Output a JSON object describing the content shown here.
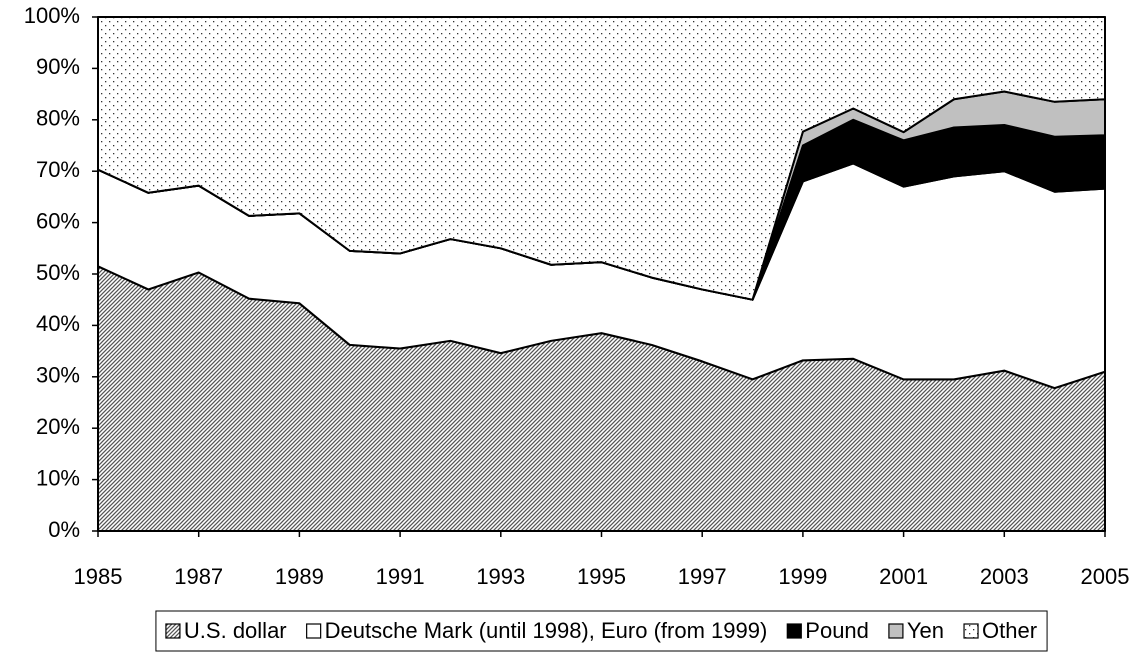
{
  "chart_data": {
    "type": "stacked_area",
    "x": [
      1985,
      1986,
      1987,
      1988,
      1989,
      1990,
      1991,
      1992,
      1993,
      1994,
      1995,
      1996,
      1997,
      1998,
      1999,
      2000,
      2001,
      2002,
      2003,
      2004,
      2005
    ],
    "series": [
      {
        "name": "U.S. dollar",
        "color": "#606060",
        "pattern": "diagonal",
        "values": [
          51.5,
          47,
          50.3,
          45.2,
          44.3,
          36.2,
          35.5,
          37,
          34.6,
          37,
          38.5,
          36.2,
          33,
          29.5,
          33.2,
          33.5,
          29.5,
          29.5,
          31.2,
          27.8,
          31
        ]
      },
      {
        "name": "Deutsche Mark (until 1998), Euro (from 1999)",
        "color": "#ffffff",
        "values": [
          18.8,
          18.8,
          16.9,
          16.1,
          17.5,
          18.3,
          18.5,
          19.8,
          20.4,
          14.8,
          13.8,
          13.1,
          14,
          15.5,
          34.8,
          38,
          37.5,
          39.5,
          38.8,
          38.2,
          35.6
        ]
      },
      {
        "name": "Pound",
        "color": "#000000",
        "values": [
          0,
          0,
          0,
          0,
          0,
          0,
          0,
          0,
          0,
          0,
          0,
          0,
          0,
          0,
          7,
          8.5,
          9,
          9.5,
          9,
          10.7,
          10.4
        ]
      },
      {
        "name": "Yen",
        "color": "#c0c0c0",
        "values": [
          0,
          0,
          0,
          0,
          0,
          0,
          0,
          0,
          0,
          0,
          0,
          0,
          0,
          0,
          2.7,
          2.2,
          1.6,
          5.5,
          6.5,
          6.8,
          7
        ]
      },
      {
        "name": "Other",
        "color": "#404040",
        "pattern": "dots",
        "values": [
          29.7,
          34.2,
          32.8,
          38.7,
          38.2,
          45.5,
          46,
          43.2,
          45,
          48.2,
          47.7,
          50.7,
          53,
          55,
          22.3,
          17.8,
          22.4,
          16,
          14.5,
          16.5,
          16
        ]
      }
    ],
    "xlim": [
      1985,
      2005
    ],
    "xticks": [
      1985,
      1987,
      1989,
      1991,
      1993,
      1995,
      1997,
      1999,
      2001,
      2003,
      2005
    ],
    "ylim": [
      0,
      100
    ],
    "yticks": [
      {
        "value": 0,
        "label": "0%"
      },
      {
        "value": 10,
        "label": "10%"
      },
      {
        "value": 20,
        "label": "20%"
      },
      {
        "value": 30,
        "label": "30%"
      },
      {
        "value": 40,
        "label": "40%"
      },
      {
        "value": 50,
        "label": "50%"
      },
      {
        "value": 60,
        "label": "60%"
      },
      {
        "value": 70,
        "label": "70%"
      },
      {
        "value": 80,
        "label": "80%"
      },
      {
        "value": 90,
        "label": "90%"
      },
      {
        "value": 100,
        "label": "100%"
      }
    ],
    "legend": "bottom"
  }
}
